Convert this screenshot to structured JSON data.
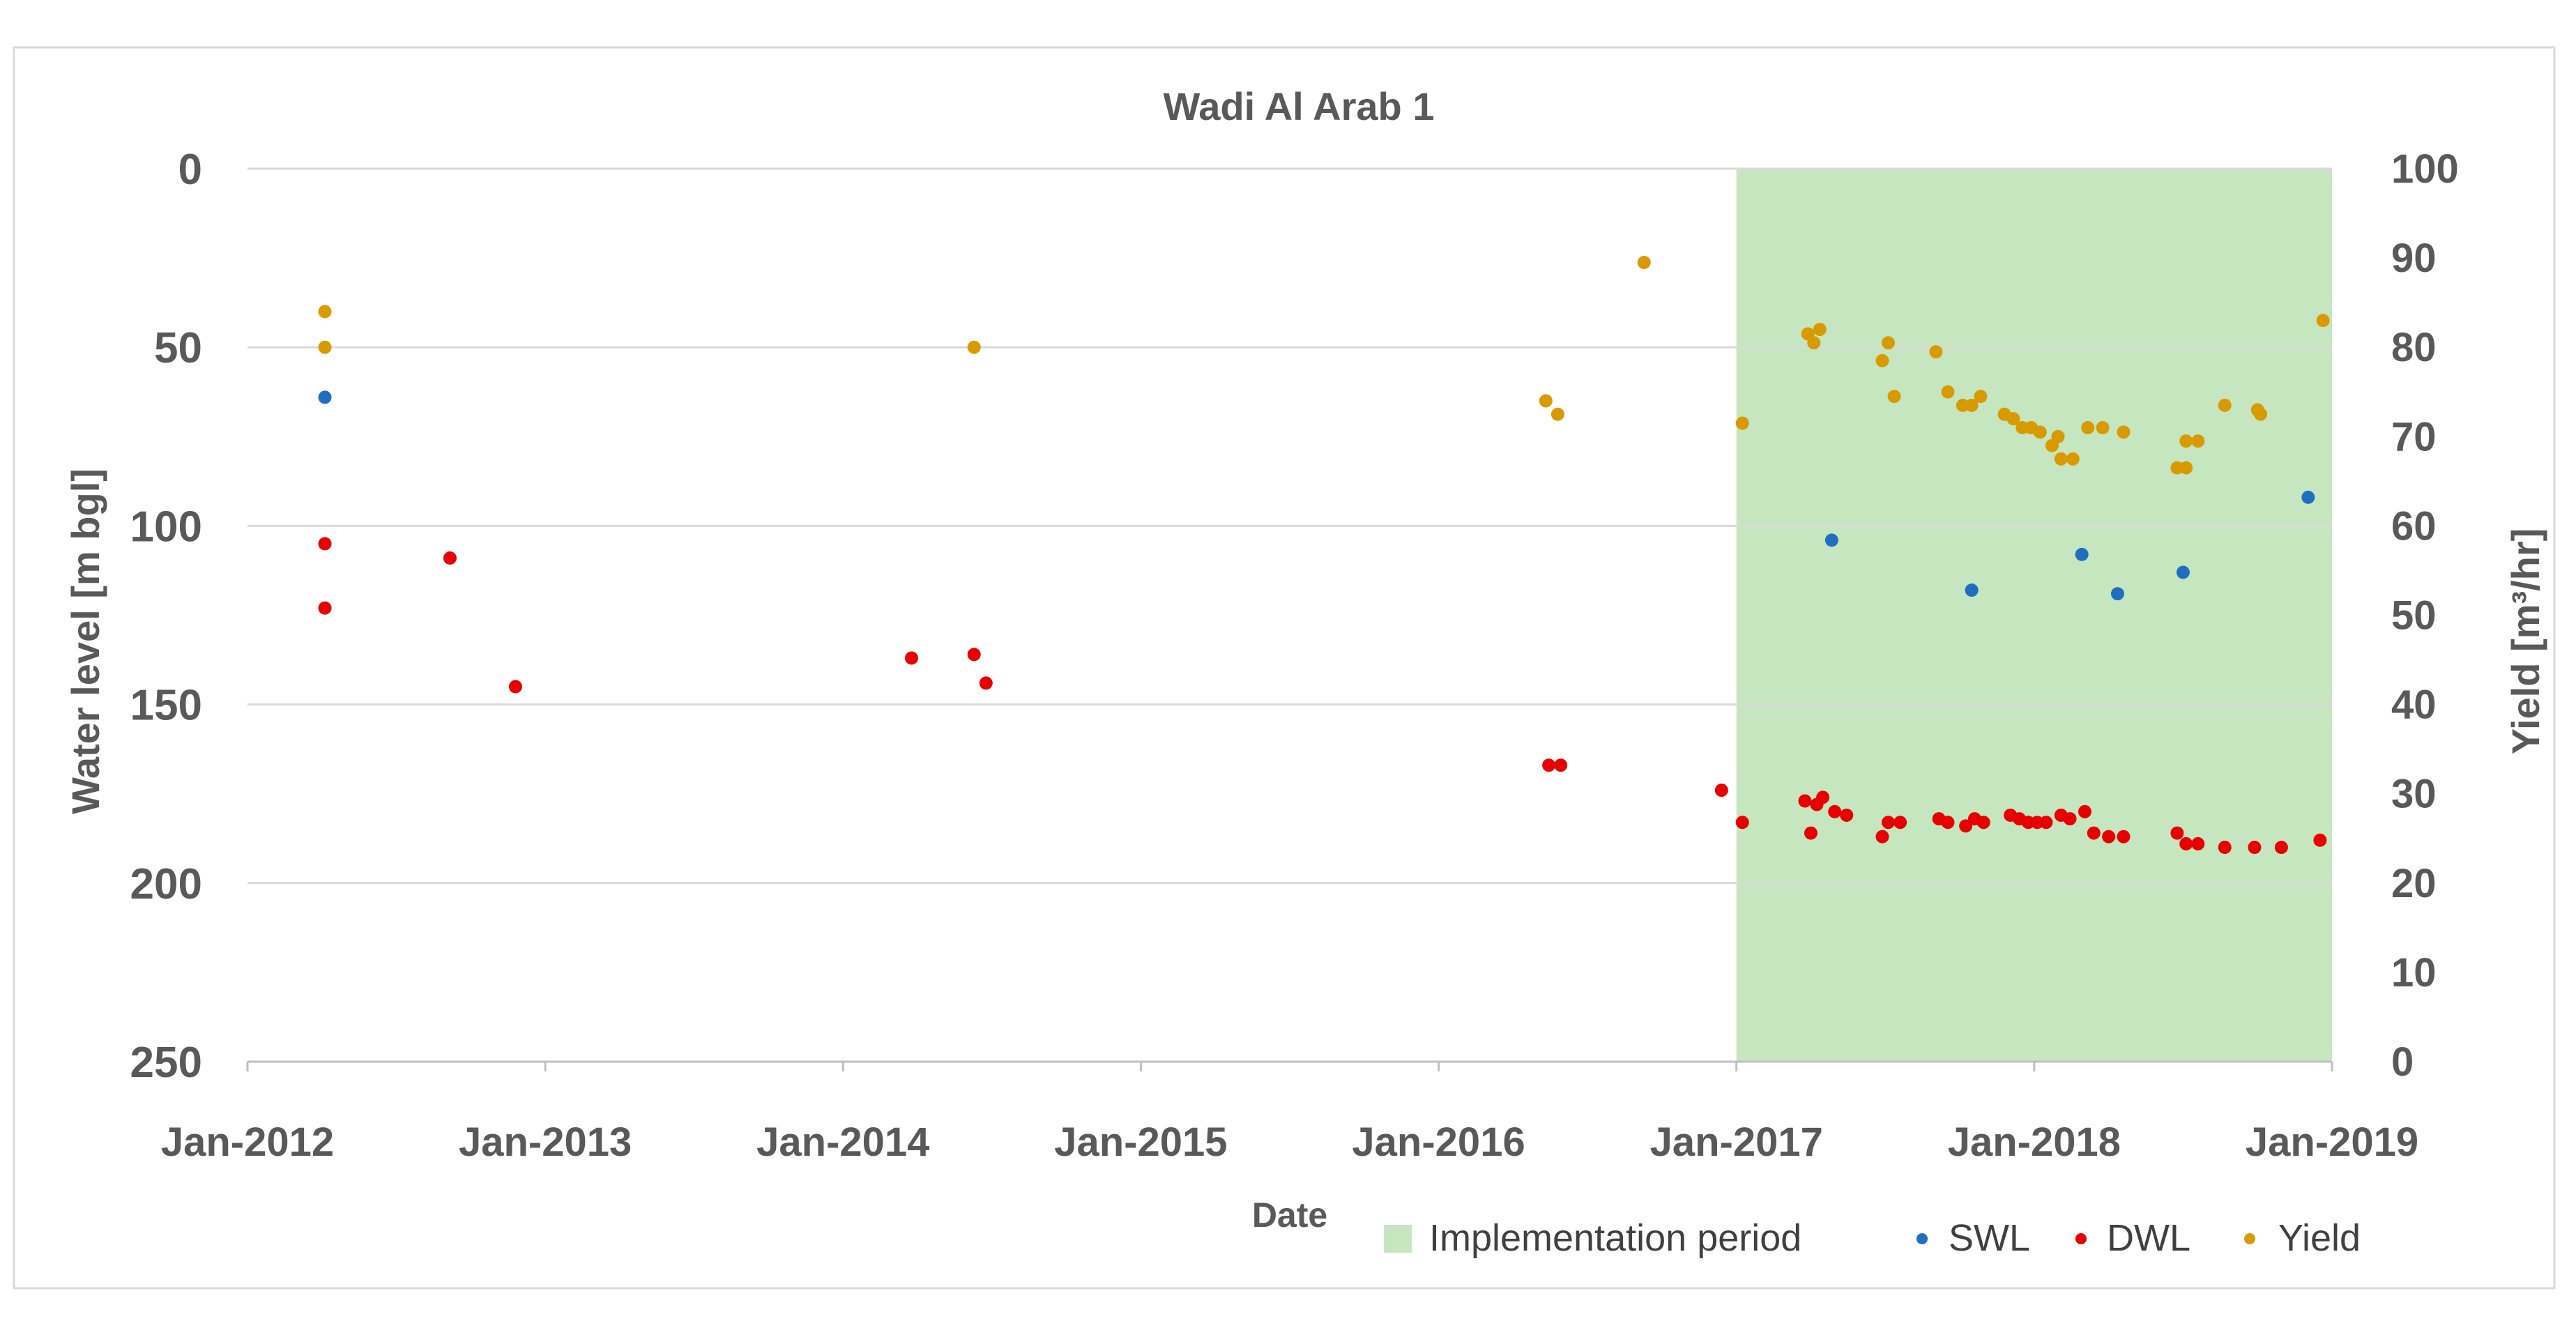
{
  "chart_data": {
    "type": "scatter",
    "title": "Wadi Al Arab 1",
    "xlabel": "Date",
    "ylabel_left": "Water level [m bgl]",
    "ylabel_right": "Yield [m³/hr]",
    "x_ticks": [
      "Jan-2012",
      "Jan-2013",
      "Jan-2014",
      "Jan-2015",
      "Jan-2016",
      "Jan-2017",
      "Jan-2018",
      "Jan-2019"
    ],
    "x_range": [
      2012.0,
      2019.0
    ],
    "y_left_ticks": [
      "0",
      "50",
      "100",
      "150",
      "200",
      "250"
    ],
    "y_left_range": [
      0,
      250
    ],
    "y_left_inverted": true,
    "y_right_ticks": [
      "0",
      "10",
      "20",
      "30",
      "40",
      "50",
      "60",
      "70",
      "80",
      "90",
      "100"
    ],
    "y_right_range": [
      0,
      100
    ],
    "grid": true,
    "implementation_period": {
      "label": "Implementation period",
      "start": 2017.0,
      "end": 2019.0,
      "color": "#c6e6c0"
    },
    "legend": [
      "Implementation period",
      "SWL",
      "DWL",
      "Yield"
    ],
    "series": [
      {
        "name": "SWL",
        "axis": "left",
        "color": "#1f6fc0",
        "points": [
          [
            2012.26,
            64
          ],
          [
            2017.32,
            104
          ],
          [
            2017.79,
            118
          ],
          [
            2018.16,
            108
          ],
          [
            2018.28,
            119
          ],
          [
            2018.5,
            113
          ],
          [
            2018.92,
            92
          ]
        ]
      },
      {
        "name": "DWL",
        "axis": "left",
        "color": "#e60000",
        "points": [
          [
            2012.26,
            105
          ],
          [
            2012.26,
            123
          ],
          [
            2012.68,
            109
          ],
          [
            2012.9,
            145
          ],
          [
            2014.23,
            137
          ],
          [
            2014.44,
            136
          ],
          [
            2014.48,
            144
          ],
          [
            2016.37,
            167
          ],
          [
            2016.41,
            167
          ],
          [
            2016.95,
            174
          ],
          [
            2017.02,
            183
          ],
          [
            2017.23,
            177
          ],
          [
            2017.25,
            186
          ],
          [
            2017.27,
            178
          ],
          [
            2017.29,
            176
          ],
          [
            2017.33,
            180
          ],
          [
            2017.37,
            181
          ],
          [
            2017.49,
            187
          ],
          [
            2017.51,
            183
          ],
          [
            2017.55,
            183
          ],
          [
            2017.68,
            182
          ],
          [
            2017.71,
            183
          ],
          [
            2017.77,
            184
          ],
          [
            2017.8,
            182
          ],
          [
            2017.83,
            183
          ],
          [
            2017.92,
            181
          ],
          [
            2017.95,
            182
          ],
          [
            2017.98,
            183
          ],
          [
            2018.01,
            183
          ],
          [
            2018.04,
            183
          ],
          [
            2018.09,
            181
          ],
          [
            2018.12,
            182
          ],
          [
            2018.17,
            180
          ],
          [
            2018.2,
            186
          ],
          [
            2018.25,
            187
          ],
          [
            2018.3,
            187
          ],
          [
            2018.48,
            186
          ],
          [
            2018.51,
            189
          ],
          [
            2018.55,
            189
          ],
          [
            2018.64,
            190
          ],
          [
            2018.74,
            190
          ],
          [
            2018.83,
            190
          ],
          [
            2018.96,
            188
          ]
        ]
      },
      {
        "name": "Yield",
        "axis": "right",
        "color": "#d99a00",
        "points": [
          [
            2012.26,
            84
          ],
          [
            2012.26,
            80
          ],
          [
            2014.44,
            80
          ],
          [
            2016.36,
            74
          ],
          [
            2016.4,
            72.5
          ],
          [
            2016.69,
            89.5
          ],
          [
            2017.02,
            71.5
          ],
          [
            2017.24,
            81.5
          ],
          [
            2017.26,
            80.5
          ],
          [
            2017.28,
            82
          ],
          [
            2017.49,
            78.5
          ],
          [
            2017.51,
            80.5
          ],
          [
            2017.53,
            74.5
          ],
          [
            2017.67,
            79.5
          ],
          [
            2017.71,
            75
          ],
          [
            2017.76,
            73.5
          ],
          [
            2017.79,
            73.5
          ],
          [
            2017.82,
            74.5
          ],
          [
            2017.9,
            72.5
          ],
          [
            2017.93,
            72
          ],
          [
            2017.96,
            71
          ],
          [
            2017.99,
            71
          ],
          [
            2018.02,
            70.5
          ],
          [
            2018.06,
            69
          ],
          [
            2018.08,
            70
          ],
          [
            2018.09,
            67.5
          ],
          [
            2018.13,
            67.5
          ],
          [
            2018.18,
            71
          ],
          [
            2018.23,
            71
          ],
          [
            2018.3,
            70.5
          ],
          [
            2018.48,
            66.5
          ],
          [
            2018.51,
            66.5
          ],
          [
            2018.51,
            69.5
          ],
          [
            2018.55,
            69.5
          ],
          [
            2018.64,
            73.5
          ],
          [
            2018.75,
            73
          ],
          [
            2018.76,
            72.5
          ],
          [
            2018.97,
            83
          ]
        ]
      }
    ]
  }
}
